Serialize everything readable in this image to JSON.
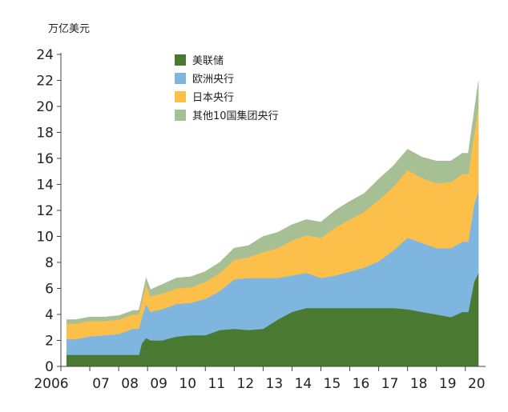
{
  "chart_data": {
    "type": "area",
    "stacked": true,
    "unit_label": "万亿美元",
    "ylim": [
      0,
      24
    ],
    "yticks": [
      0,
      2,
      4,
      6,
      8,
      10,
      12,
      14,
      16,
      18,
      20,
      22,
      24
    ],
    "xlim": [
      2006.0,
      2020.7
    ],
    "xticks": [
      {
        "x": 2006.0,
        "label": "2006"
      },
      {
        "x": 2007.0,
        "label": "07"
      },
      {
        "x": 2008.0,
        "label": "08"
      },
      {
        "x": 2009.0,
        "label": "09"
      },
      {
        "x": 2010.0,
        "label": "10"
      },
      {
        "x": 2011.0,
        "label": "11"
      },
      {
        "x": 2012.0,
        "label": "12"
      },
      {
        "x": 2013.0,
        "label": "13"
      },
      {
        "x": 2014.0,
        "label": "14"
      },
      {
        "x": 2015.0,
        "label": "15"
      },
      {
        "x": 2016.0,
        "label": "16"
      },
      {
        "x": 2017.0,
        "label": "17"
      },
      {
        "x": 2018.0,
        "label": "18"
      },
      {
        "x": 2019.0,
        "label": "19"
      },
      {
        "x": 2020.0,
        "label": "20"
      }
    ],
    "x": [
      2006.2,
      2006.5,
      2007.0,
      2007.5,
      2008.0,
      2008.5,
      2008.7,
      2008.8,
      2008.95,
      2009.1,
      2009.5,
      2010.0,
      2010.5,
      2011.0,
      2011.5,
      2012.0,
      2012.5,
      2013.0,
      2013.5,
      2014.0,
      2014.5,
      2015.0,
      2015.5,
      2016.0,
      2016.5,
      2017.0,
      2017.5,
      2018.0,
      2018.5,
      2019.0,
      2019.5,
      2019.9,
      2020.1,
      2020.3,
      2020.45
    ],
    "series": [
      {
        "name": "美联储",
        "color": "#4a7a32",
        "values": [
          0.9,
          0.9,
          0.9,
          0.9,
          0.9,
          0.9,
          0.9,
          1.8,
          2.2,
          2.0,
          2.0,
          2.3,
          2.4,
          2.4,
          2.8,
          2.9,
          2.8,
          2.9,
          3.6,
          4.2,
          4.5,
          4.5,
          4.5,
          4.5,
          4.5,
          4.5,
          4.5,
          4.4,
          4.2,
          4.0,
          3.8,
          4.2,
          4.2,
          6.5,
          7.2
        ]
      },
      {
        "name": "欧洲央行",
        "color": "#7fb6df",
        "values": [
          1.2,
          1.2,
          1.4,
          1.5,
          1.6,
          2.0,
          2.0,
          2.0,
          2.6,
          2.2,
          2.4,
          2.5,
          2.5,
          2.8,
          3.0,
          3.8,
          4.0,
          3.9,
          3.2,
          2.8,
          2.7,
          2.3,
          2.5,
          2.8,
          3.1,
          3.6,
          4.4,
          5.5,
          5.3,
          5.1,
          5.3,
          5.4,
          5.4,
          5.9,
          6.3
        ]
      },
      {
        "name": "日本央行",
        "color": "#fcbf49",
        "values": [
          1.2,
          1.2,
          1.2,
          1.1,
          1.1,
          1.1,
          1.1,
          1.2,
          1.5,
          1.2,
          1.2,
          1.2,
          1.2,
          1.3,
          1.4,
          1.5,
          1.6,
          2.0,
          2.3,
          2.7,
          2.9,
          3.1,
          3.7,
          4.0,
          4.3,
          4.7,
          4.9,
          5.2,
          5.0,
          5.0,
          5.1,
          5.2,
          5.2,
          5.5,
          6.4
        ]
      },
      {
        "name": "其他10国集团央行",
        "color": "#a6bf94",
        "values": [
          0.3,
          0.3,
          0.3,
          0.3,
          0.3,
          0.3,
          0.3,
          0.3,
          0.5,
          0.5,
          0.7,
          0.8,
          0.8,
          0.8,
          0.8,
          0.9,
          0.9,
          1.2,
          1.2,
          1.2,
          1.2,
          1.2,
          1.3,
          1.4,
          1.4,
          1.6,
          1.6,
          1.6,
          1.6,
          1.7,
          1.6,
          1.6,
          1.6,
          1.6,
          2.0
        ]
      }
    ]
  }
}
